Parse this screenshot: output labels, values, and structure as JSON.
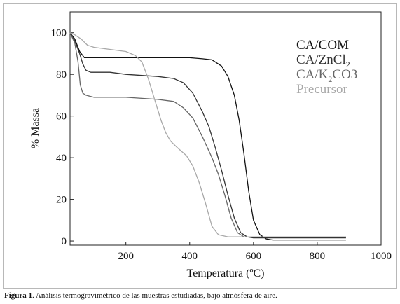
{
  "caption": {
    "label": "Figura 1",
    "text": ". Análisis termogravimétrico de las muestras estudiadas, bajo atmósfera de aire."
  },
  "chart_data": {
    "type": "line",
    "title": "",
    "xlabel": "Temperatura (ºC)",
    "ylabel": "% Massa",
    "xlim": [
      25,
      1000
    ],
    "ylim": [
      -2,
      110
    ],
    "xticks": [
      200,
      400,
      600,
      800,
      1000
    ],
    "yticks": [
      0,
      20,
      40,
      60,
      80,
      100
    ],
    "grid": false,
    "legend_position": "top-right",
    "series": [
      {
        "name": "CA/COM",
        "color": "#111111",
        "points": [
          [
            25,
            100
          ],
          [
            40,
            97
          ],
          [
            55,
            91
          ],
          [
            65,
            89
          ],
          [
            70,
            88
          ],
          [
            100,
            88
          ],
          [
            200,
            88
          ],
          [
            300,
            88
          ],
          [
            400,
            88
          ],
          [
            440,
            87.5
          ],
          [
            470,
            87
          ],
          [
            500,
            84
          ],
          [
            520,
            79
          ],
          [
            540,
            70
          ],
          [
            555,
            58
          ],
          [
            570,
            42
          ],
          [
            585,
            24
          ],
          [
            600,
            10
          ],
          [
            620,
            3
          ],
          [
            640,
            1
          ],
          [
            660,
            0.5
          ],
          [
            700,
            0.5
          ],
          [
            800,
            0.5
          ],
          [
            890,
            0.5
          ]
        ]
      },
      {
        "name": "CA/ZnCl2",
        "color": "#333333",
        "points": [
          [
            25,
            100
          ],
          [
            40,
            96
          ],
          [
            55,
            90
          ],
          [
            65,
            85
          ],
          [
            75,
            82
          ],
          [
            90,
            81
          ],
          [
            150,
            81
          ],
          [
            200,
            80
          ],
          [
            300,
            79
          ],
          [
            350,
            78
          ],
          [
            380,
            76
          ],
          [
            410,
            71
          ],
          [
            440,
            62
          ],
          [
            460,
            55
          ],
          [
            480,
            45
          ],
          [
            500,
            34
          ],
          [
            520,
            22
          ],
          [
            540,
            11
          ],
          [
            560,
            4
          ],
          [
            580,
            2
          ],
          [
            600,
            1.5
          ],
          [
            700,
            1.5
          ],
          [
            800,
            1.5
          ],
          [
            890,
            1.5
          ]
        ]
      },
      {
        "name": "CA/K2CO3",
        "color": "#666666",
        "points": [
          [
            25,
            100
          ],
          [
            40,
            95
          ],
          [
            50,
            86
          ],
          [
            57,
            75
          ],
          [
            65,
            71
          ],
          [
            75,
            70
          ],
          [
            100,
            69
          ],
          [
            200,
            69
          ],
          [
            300,
            68
          ],
          [
            350,
            67
          ],
          [
            380,
            64
          ],
          [
            410,
            59
          ],
          [
            440,
            50
          ],
          [
            470,
            40
          ],
          [
            490,
            32
          ],
          [
            510,
            22
          ],
          [
            530,
            11
          ],
          [
            550,
            4
          ],
          [
            570,
            2
          ],
          [
            600,
            2
          ],
          [
            700,
            2
          ],
          [
            800,
            2
          ],
          [
            890,
            2
          ]
        ]
      },
      {
        "name": "Precursor",
        "color": "#a8a8a8",
        "points": [
          [
            25,
            100
          ],
          [
            40,
            99
          ],
          [
            60,
            97
          ],
          [
            80,
            94
          ],
          [
            100,
            93
          ],
          [
            150,
            92
          ],
          [
            200,
            91
          ],
          [
            230,
            89
          ],
          [
            250,
            86
          ],
          [
            270,
            78
          ],
          [
            290,
            68
          ],
          [
            310,
            58
          ],
          [
            325,
            52
          ],
          [
            340,
            48
          ],
          [
            360,
            45
          ],
          [
            390,
            41
          ],
          [
            410,
            36
          ],
          [
            430,
            28
          ],
          [
            450,
            18
          ],
          [
            470,
            7
          ],
          [
            490,
            3
          ],
          [
            520,
            2
          ],
          [
            600,
            2
          ],
          [
            700,
            2
          ],
          [
            800,
            2
          ],
          [
            890,
            2
          ]
        ]
      }
    ]
  }
}
